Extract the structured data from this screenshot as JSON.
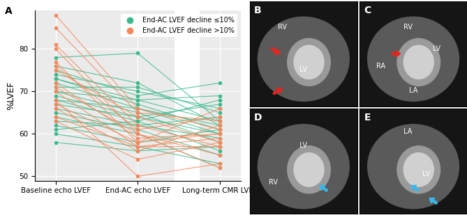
{
  "chart_data": {
    "type": "line",
    "panel_label": "A",
    "categories": [
      "Baseline echo LVEF",
      "End-AC echo LVEF",
      "Long-term CMR LVEF"
    ],
    "y_label": "%LVEF",
    "ylim": [
      49,
      89
    ],
    "yticks": [
      50,
      60,
      70,
      80
    ],
    "grid": true,
    "legend": "upper right",
    "marker": "circle",
    "series": [
      {
        "name": "End-AC LVEF decline ≤10%",
        "color": "#3dba8c",
        "values": [
          [
            78,
            79,
            63
          ],
          [
            76,
            72,
            62
          ],
          [
            75,
            69,
            72
          ],
          [
            74,
            70,
            66
          ],
          [
            73,
            68,
            69
          ],
          [
            73,
            67,
            61
          ],
          [
            72,
            66,
            60
          ],
          [
            71,
            71,
            65
          ],
          [
            70,
            68,
            63
          ],
          [
            70,
            65,
            58
          ],
          [
            69,
            64,
            67
          ],
          [
            68,
            66,
            62
          ],
          [
            68,
            63,
            56
          ],
          [
            67,
            64,
            60
          ],
          [
            66,
            62,
            64
          ],
          [
            65,
            61,
            55
          ],
          [
            64,
            60,
            52
          ],
          [
            63,
            62,
            59
          ],
          [
            62,
            58,
            61
          ],
          [
            58,
            56,
            57
          ],
          [
            61,
            63,
            68
          ],
          [
            60,
            57,
            53
          ]
        ]
      },
      {
        "name": "End-AC LVEF decline >10%",
        "color": "#f4875c",
        "values": [
          [
            88,
            66,
            61
          ],
          [
            85,
            65,
            63
          ],
          [
            81,
            62,
            57
          ],
          [
            80,
            60,
            55
          ],
          [
            77,
            58,
            60
          ],
          [
            76,
            61,
            64
          ],
          [
            75,
            64,
            58
          ],
          [
            72,
            59,
            60
          ],
          [
            71,
            60,
            52
          ],
          [
            70,
            57,
            59
          ],
          [
            68,
            50,
            53
          ],
          [
            67,
            58,
            66
          ],
          [
            66,
            56,
            62
          ],
          [
            64,
            57,
            57
          ],
          [
            63,
            54,
            58
          ]
        ]
      }
    ]
  },
  "image_panels": [
    {
      "panel_label": "B",
      "labels": [
        "RV",
        "LV"
      ]
    },
    {
      "panel_label": "C",
      "labels": [
        "RV",
        "LV",
        "RA",
        "LA"
      ]
    },
    {
      "panel_label": "D",
      "labels": [
        "RV",
        "LV"
      ]
    },
    {
      "panel_label": "E",
      "labels": [
        "LA",
        "LV"
      ]
    }
  ]
}
